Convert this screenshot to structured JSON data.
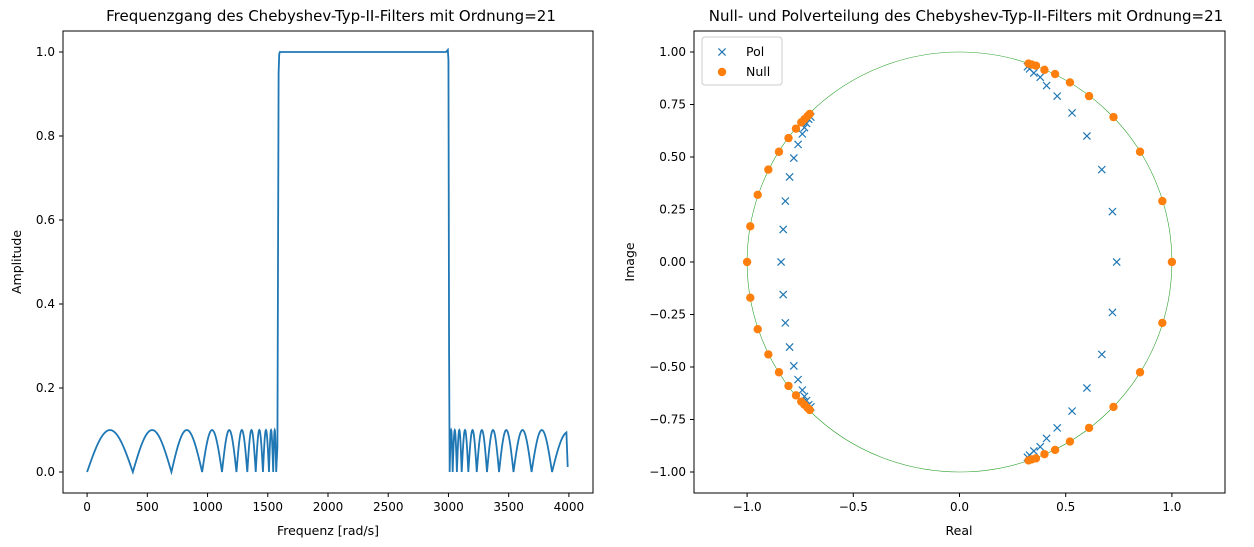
{
  "chart_data": [
    {
      "type": "line",
      "title": "Frequenzgang des Chebyshev-Typ-II-Filters mit Ordnung=21",
      "xlabel": "Frequenz [rad/s]",
      "ylabel": "Amplitude",
      "xlim": [
        -200,
        4200
      ],
      "ylim": [
        -0.05,
        1.05
      ],
      "xticks": [
        0,
        500,
        1000,
        1500,
        2000,
        2500,
        3000,
        3500,
        4000
      ],
      "xtick_labels": [
        "0",
        "500",
        "1000",
        "1500",
        "2000",
        "2500",
        "3000",
        "3500",
        "4000"
      ],
      "yticks": [
        0.0,
        0.2,
        0.4,
        0.6,
        0.8,
        1.0
      ],
      "ytick_labels": [
        "0.0",
        "0.2",
        "0.4",
        "0.6",
        "0.8",
        "1.0"
      ],
      "grid": false,
      "series_color": "#1f77b4",
      "x_range": [
        0,
        3990
      ],
      "passband": [
        1600,
        3000
      ],
      "stopband_ripple_peak": 0.1,
      "lower_stopband_zeros": [
        0,
        380,
        700,
        955,
        1120,
        1240,
        1330,
        1400,
        1460,
        1510,
        1545,
        1570
      ],
      "upper_stopband_zeros": [
        3010,
        3035,
        3070,
        3110,
        3165,
        3235,
        3320,
        3420,
        3540,
        3690,
        3860
      ],
      "passband_edge_low": 1595,
      "passband_edge_high": 3010
    },
    {
      "type": "scatter",
      "title": "Null- und Polverteilung des Chebyshev-Typ-II-Filters mit Ordnung=21",
      "xlabel": "Real",
      "ylabel": "Image",
      "xlim": [
        -1.25,
        1.25
      ],
      "ylim": [
        -1.1,
        1.1
      ],
      "xticks": [
        -1.0,
        -0.5,
        0.0,
        0.5,
        1.0
      ],
      "xtick_labels": [
        "−1.0",
        "−0.5",
        "0.0",
        "0.5",
        "1.0"
      ],
      "yticks": [
        -1.0,
        -0.75,
        -0.5,
        -0.25,
        0.0,
        0.25,
        0.5,
        0.75,
        1.0
      ],
      "ytick_labels": [
        "−1.00",
        "−0.75",
        "−0.50",
        "−0.25",
        "0.00",
        "0.25",
        "0.50",
        "0.75",
        "1.00"
      ],
      "grid": false,
      "legend_position": "top-left",
      "unit_circle_color": "#2ca02c",
      "series": [
        {
          "name": "Pol",
          "marker": "x",
          "color": "#1f77b4",
          "points": [
            [
              0.74,
              0.0
            ],
            [
              0.72,
              0.24
            ],
            [
              0.72,
              -0.24
            ],
            [
              0.67,
              0.44
            ],
            [
              0.67,
              -0.44
            ],
            [
              0.6,
              0.6
            ],
            [
              0.6,
              -0.6
            ],
            [
              0.53,
              0.71
            ],
            [
              0.53,
              -0.71
            ],
            [
              0.46,
              0.79
            ],
            [
              0.46,
              -0.79
            ],
            [
              0.41,
              0.84
            ],
            [
              0.41,
              -0.84
            ],
            [
              0.38,
              0.88
            ],
            [
              0.38,
              -0.88
            ],
            [
              0.35,
              0.9
            ],
            [
              0.35,
              -0.9
            ],
            [
              0.33,
              0.92
            ],
            [
              0.33,
              -0.92
            ],
            [
              0.32,
              0.93
            ],
            [
              0.32,
              -0.93
            ],
            [
              -0.84,
              0.0
            ],
            [
              -0.83,
              0.155
            ],
            [
              -0.83,
              -0.155
            ],
            [
              -0.82,
              0.29
            ],
            [
              -0.82,
              -0.29
            ],
            [
              -0.8,
              0.405
            ],
            [
              -0.8,
              -0.405
            ],
            [
              -0.78,
              0.495
            ],
            [
              -0.78,
              -0.495
            ],
            [
              -0.76,
              0.56
            ],
            [
              -0.76,
              -0.56
            ],
            [
              -0.74,
              0.61
            ],
            [
              -0.74,
              -0.61
            ],
            [
              -0.73,
              0.64
            ],
            [
              -0.73,
              -0.64
            ],
            [
              -0.72,
              0.66
            ],
            [
              -0.72,
              -0.66
            ],
            [
              -0.71,
              0.68
            ],
            [
              -0.71,
              -0.68
            ],
            [
              -0.7,
              0.69
            ],
            [
              -0.7,
              -0.69
            ]
          ]
        },
        {
          "name": "Null",
          "marker": "o",
          "color": "#ff7f0e",
          "points": [
            [
              1.0,
              0.0
            ],
            [
              0.955,
              0.29
            ],
            [
              0.955,
              -0.29
            ],
            [
              0.85,
              0.525
            ],
            [
              0.85,
              -0.525
            ],
            [
              0.725,
              0.69
            ],
            [
              0.725,
              -0.69
            ],
            [
              0.61,
              0.79
            ],
            [
              0.61,
              -0.79
            ],
            [
              0.52,
              0.855
            ],
            [
              0.52,
              -0.855
            ],
            [
              0.45,
              0.895
            ],
            [
              0.45,
              -0.895
            ],
            [
              0.4,
              0.915
            ],
            [
              0.4,
              -0.915
            ],
            [
              0.36,
              0.935
            ],
            [
              0.36,
              -0.935
            ],
            [
              0.34,
              0.94
            ],
            [
              0.34,
              -0.94
            ],
            [
              0.325,
              0.945
            ],
            [
              0.325,
              -0.945
            ],
            [
              -1.0,
              0.0
            ],
            [
              -0.985,
              0.17
            ],
            [
              -0.985,
              -0.17
            ],
            [
              -0.95,
              0.32
            ],
            [
              -0.95,
              -0.32
            ],
            [
              -0.9,
              0.44
            ],
            [
              -0.9,
              -0.44
            ],
            [
              -0.85,
              0.525
            ],
            [
              -0.85,
              -0.525
            ],
            [
              -0.805,
              0.59
            ],
            [
              -0.805,
              -0.59
            ],
            [
              -0.77,
              0.635
            ],
            [
              -0.77,
              -0.635
            ],
            [
              -0.745,
              0.665
            ],
            [
              -0.745,
              -0.665
            ],
            [
              -0.73,
              0.68
            ],
            [
              -0.73,
              -0.68
            ],
            [
              -0.715,
              0.695
            ],
            [
              -0.715,
              -0.695
            ],
            [
              -0.705,
              0.705
            ],
            [
              -0.705,
              -0.705
            ]
          ]
        }
      ]
    }
  ]
}
